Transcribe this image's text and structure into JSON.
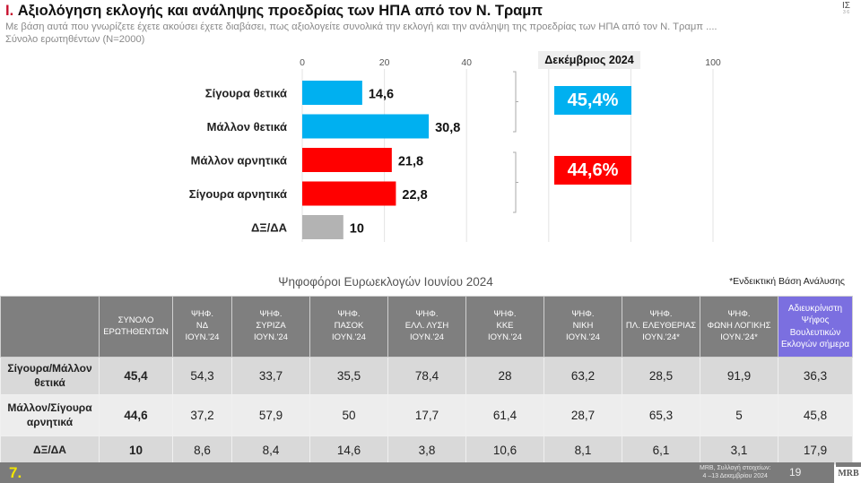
{
  "header": {
    "number": "I.",
    "title": "Αξιολόγηση εκλογής και ανάληψης προεδρίας των ΗΠΑ από τον Ν. Τραμπ",
    "question": "Με βάση αυτά που γνωρίζετε έχετε ακούσει έχετε διαβάσει, πως αξιολογείτε συνολικά την εκλογή και την ανάληψη της προεδρίας των ΗΠΑ από τον Ν. Τραμπ ....",
    "base": "Σύνολο ερωτηθέντων (N=2000)",
    "corner_logo": "ΙΣ",
    "corner_logo_small": "3 6"
  },
  "chart_data": {
    "type": "bar",
    "orientation": "horizontal",
    "title": "Αξιολόγηση εκλογής και ανάληψης προεδρίας των ΗΠΑ από τον Ν. Τραμπ",
    "categories": [
      "Σίγουρα θετικά",
      "Μάλλον θετικά",
      "Μάλλον αρνητικά",
      "Σίγουρα αρνητικά",
      "ΔΞ/ΔΑ"
    ],
    "values": [
      14.6,
      30.8,
      21.8,
      22.8,
      10
    ],
    "value_labels": [
      "14,6",
      "30,8",
      "21,8",
      "22,8",
      "10"
    ],
    "bar_colors": [
      "#00b0f0",
      "#00b0f0",
      "#ff0000",
      "#ff0000",
      "#b3b3b3"
    ],
    "xlim": [
      0,
      100
    ],
    "xticks": [
      0,
      20,
      40,
      100
    ],
    "xtick_labels": [
      "0",
      "20",
      "40",
      "100"
    ],
    "gridlines_at": [
      0,
      20,
      40,
      60,
      80,
      100
    ],
    "grid": true,
    "xlabel": "",
    "ylabel": "",
    "period_label": "Δεκέμβριος 2024",
    "summaries": [
      {
        "label": "45,4%",
        "value": 45.4,
        "group": "positive",
        "color": "#00b0f0"
      },
      {
        "label": "44,6%",
        "value": 44.6,
        "group": "negative",
        "color": "#ff0000"
      }
    ]
  },
  "table": {
    "title": "Ψηφοφόροι Ευρωεκλογών Ιουνίου 2024",
    "note": "*Ενδεικτική Βάση Ανάλυσης",
    "columns": [
      {
        "lines": [
          "ΣΥΝΟΛΟ",
          "ΕΡΩΤΗΘΕΝΤΩΝ"
        ]
      },
      {
        "lines": [
          "ΨΗΦ.",
          "ΝΔ",
          "ΙΟΥΝ.'24"
        ]
      },
      {
        "lines": [
          "ΨΗΦ.",
          "ΣΥΡΙΖΑ",
          "ΙΟΥΝ.'24"
        ]
      },
      {
        "lines": [
          "ΨΗΦ.",
          "ΠΑΣΟΚ",
          "ΙΟΥΝ.'24"
        ]
      },
      {
        "lines": [
          "ΨΗΦ.",
          "ΕΛΛ. ΛΥΣΗ",
          "ΙΟΥΝ.'24"
        ]
      },
      {
        "lines": [
          "ΨΗΦ.",
          "ΚΚΕ",
          "ΙΟΥΝ.'24"
        ]
      },
      {
        "lines": [
          "ΨΗΦ.",
          "ΝΙΚΗ",
          "ΙΟΥΝ.'24"
        ]
      },
      {
        "lines": [
          "ΨΗΦ.",
          "ΠΛ. ΕΛΕΥΘΕΡΙΑΣ",
          "ΙΟΥΝ.'24*"
        ]
      },
      {
        "lines": [
          "ΨΗΦ.",
          "ΦΩΝΗ ΛΟΓΙΚΗΣ",
          "ΙΟΥΝ.'24*"
        ]
      },
      {
        "lines": [
          "Αδιευκρίνιστη",
          "Ψήφος",
          "Βουλευτικών",
          "Εκλογών σήμερα"
        ],
        "highlight": true,
        "color": "#7b6fe0"
      }
    ],
    "rows": [
      {
        "label": [
          "Σίγουρα/Μάλλον",
          "θετικά"
        ],
        "values": [
          "45,4",
          "54,3",
          "33,7",
          "35,5",
          "78,4",
          "28",
          "63,2",
          "28,5",
          "91,9",
          "36,3"
        ]
      },
      {
        "label": [
          "Μάλλον/Σίγουρα",
          "αρνητικά"
        ],
        "values": [
          "44,6",
          "37,2",
          "57,9",
          "50",
          "17,7",
          "61,4",
          "28,7",
          "65,3",
          "5",
          "45,8"
        ]
      },
      {
        "label": [
          "ΔΞ/ΔΑ"
        ],
        "values": [
          "10",
          "8,6",
          "8,4",
          "14,6",
          "3,8",
          "10,6",
          "8,1",
          "6,1",
          "3,1",
          "17,9"
        ]
      }
    ]
  },
  "footer": {
    "slide_number": "7.",
    "source_line1": "MRB, Συλλογή στοιχείων:",
    "source_line2": "4 –13 Δεκεμβρίου 2024",
    "page": "19",
    "logo": "MRB"
  }
}
